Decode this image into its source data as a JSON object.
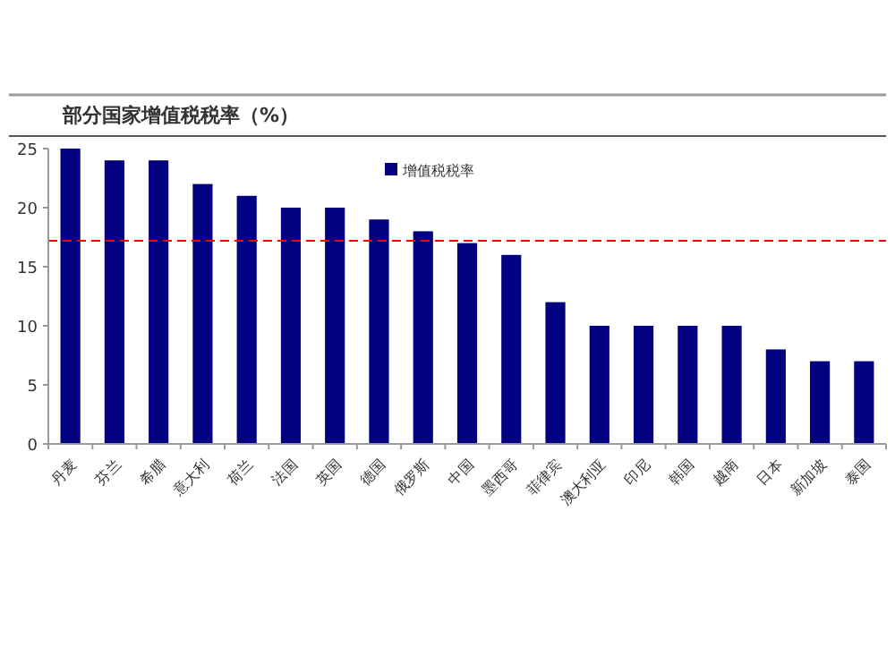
{
  "chart_data": {
    "type": "bar",
    "title": "部分国家增值税税率（%）",
    "categories": [
      "丹麦",
      "芬兰",
      "希腊",
      "意大利",
      "荷兰",
      "法国",
      "英国",
      "德国",
      "俄罗斯",
      "中国",
      "墨西哥",
      "菲律宾",
      "澳大利亚",
      "印尼",
      "韩国",
      "越南",
      "日本",
      "新加坡",
      "泰国"
    ],
    "series": [
      {
        "name": "增值税税率",
        "color": "#000080",
        "values": [
          25,
          24,
          24,
          22,
          21,
          20,
          20,
          19,
          18,
          17,
          16,
          12,
          10,
          10,
          10,
          10,
          8,
          7,
          7
        ]
      }
    ],
    "ylim": [
      0,
      25
    ],
    "yticks": [
      0,
      5,
      10,
      15,
      20,
      25
    ],
    "ref_lines": [
      {
        "axis": "y",
        "value": 17.2,
        "color": "#ff0000",
        "line_style": "dashed"
      }
    ],
    "grid": false,
    "legend": "top"
  }
}
